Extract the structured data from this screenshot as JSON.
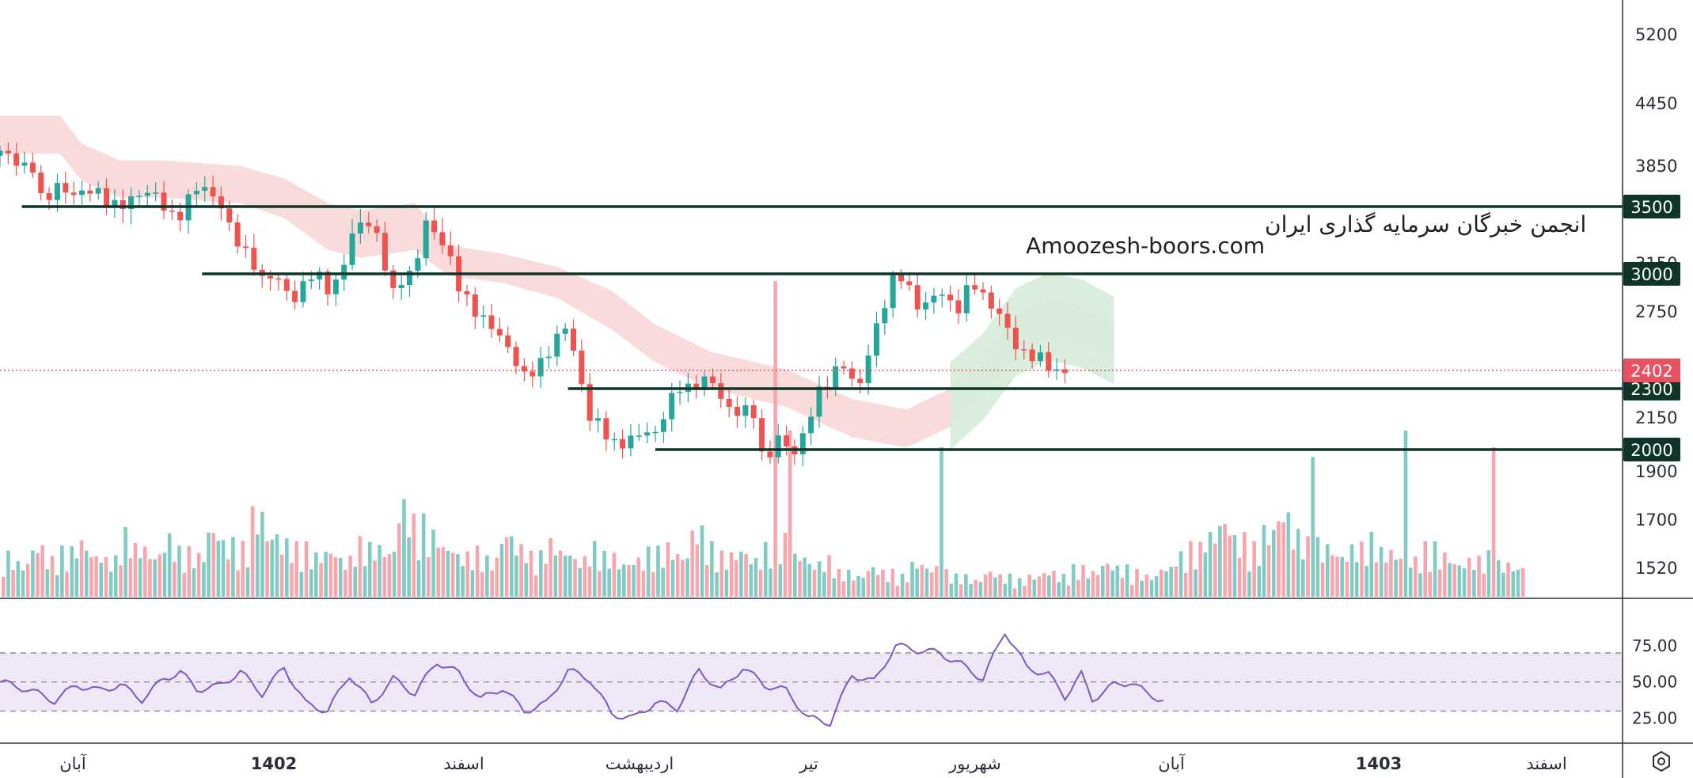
{
  "chart_data": {
    "type": "candlestick",
    "title": "",
    "watermark": [
      "انجمن خبرگان سرمایه گذاری ایران",
      "Amoozesh-boors.com"
    ],
    "ylim": [
      1450,
      5500
    ],
    "y_ticks": [
      5200,
      4450,
      3850,
      3150,
      2750,
      2150,
      1900,
      1700,
      1520
    ],
    "x_ticks": [
      {
        "label": "آبان",
        "bold": false
      },
      {
        "label": "1402",
        "bold": true
      },
      {
        "label": "اسفند",
        "bold": false
      },
      {
        "label": "اردیبهشت",
        "bold": false
      },
      {
        "label": "تیر",
        "bold": false
      },
      {
        "label": "شهریور",
        "bold": false
      },
      {
        "label": "آبان",
        "bold": false
      },
      {
        "label": "1403",
        "bold": true
      },
      {
        "label": "اسفند",
        "bold": false
      }
    ],
    "current_price": {
      "value": 2402,
      "label": "2402",
      "color": "#e8515f"
    },
    "levels": [
      {
        "value": 3500,
        "label": "3500",
        "from_month": 0.2
      },
      {
        "value": 3000,
        "label": "3000",
        "from_month": 1.85
      },
      {
        "value": 2300,
        "label": "2300",
        "from_month": 5.2
      },
      {
        "value": 2000,
        "label": "2000",
        "from_month": 6.0
      }
    ],
    "price_path": [
      [
        0,
        3950
      ],
      [
        0.3,
        3870
      ],
      [
        0.4,
        3450
      ],
      [
        0.5,
        3650
      ],
      [
        0.8,
        3650
      ],
      [
        1.0,
        3500
      ],
      [
        1.2,
        3600
      ],
      [
        1.4,
        3580
      ],
      [
        1.6,
        3450
      ],
      [
        1.8,
        3630
      ],
      [
        2.0,
        3580
      ],
      [
        2.2,
        3250
      ],
      [
        2.4,
        2950
      ],
      [
        2.5,
        3050
      ],
      [
        2.7,
        2800
      ],
      [
        2.9,
        3050
      ],
      [
        3.05,
        2880
      ],
      [
        3.2,
        3250
      ],
      [
        3.35,
        3450
      ],
      [
        3.45,
        3350
      ],
      [
        3.6,
        2850
      ],
      [
        3.75,
        3000
      ],
      [
        3.9,
        3450
      ],
      [
        4.1,
        3200
      ],
      [
        4.2,
        2900
      ],
      [
        4.4,
        2750
      ],
      [
        4.6,
        2550
      ],
      [
        4.8,
        2400
      ],
      [
        5.0,
        2450
      ],
      [
        5.2,
        2700
      ],
      [
        5.3,
        2400
      ],
      [
        5.4,
        2150
      ],
      [
        5.6,
        2020
      ],
      [
        5.8,
        2080
      ],
      [
        6.0,
        2050
      ],
      [
        6.2,
        2350
      ],
      [
        6.35,
        2280
      ],
      [
        6.5,
        2350
      ],
      [
        6.7,
        2200
      ],
      [
        6.9,
        2150
      ],
      [
        7.0,
        1900
      ],
      [
        7.1,
        2100
      ],
      [
        7.3,
        1950
      ],
      [
        7.5,
        2300
      ],
      [
        7.7,
        2450
      ],
      [
        7.85,
        2250
      ],
      [
        8.0,
        2650
      ],
      [
        8.2,
        3000
      ],
      [
        8.4,
        2800
      ],
      [
        8.6,
        2900
      ],
      [
        8.75,
        2700
      ],
      [
        8.9,
        3000
      ],
      [
        9.1,
        2750
      ],
      [
        9.3,
        2550
      ],
      [
        9.5,
        2500
      ],
      [
        9.65,
        2350
      ],
      [
        9.75,
        2402
      ]
    ],
    "cloud_path": [
      [
        0,
        4050
      ],
      [
        0.55,
        4050
      ],
      [
        0.75,
        3800
      ],
      [
        1.1,
        3650
      ],
      [
        1.5,
        3650
      ],
      [
        2.2,
        3600
      ],
      [
        2.6,
        3500
      ],
      [
        3.0,
        3300
      ],
      [
        3.3,
        3250
      ],
      [
        3.8,
        3300
      ],
      [
        4.1,
        3050
      ],
      [
        4.6,
        3000
      ],
      [
        5.1,
        2900
      ],
      [
        5.6,
        2700
      ],
      [
        6.0,
        2500
      ],
      [
        6.5,
        2350
      ],
      [
        7.2,
        2250
      ],
      [
        7.8,
        2100
      ],
      [
        8.3,
        2050
      ],
      [
        8.7,
        2150
      ],
      [
        9.0,
        2300
      ],
      [
        9.3,
        2550
      ],
      [
        9.6,
        2650
      ],
      [
        9.9,
        2600
      ],
      [
        10.2,
        2500
      ]
    ],
    "volume_profile": [
      0.1,
      0.08,
      0.12,
      0.09,
      0.11,
      0.13,
      0.1,
      0.09,
      0.15,
      0.12,
      0.1,
      0.14,
      0.11,
      0.1,
      0.16,
      0.13,
      0.12,
      0.2,
      0.15,
      0.13,
      0.12,
      0.1,
      0.11,
      0.09,
      0.13,
      0.12,
      0.11,
      0.22,
      0.18,
      0.15,
      0.12,
      0.1,
      0.11,
      0.09,
      0.15,
      0.12,
      0.1,
      0.13,
      0.11,
      0.09,
      0.12,
      0.1,
      0.08,
      0.09,
      0.11,
      0.12,
      0.1,
      0.16,
      0.12,
      0.1,
      0.11,
      0.09,
      0.12,
      0.14,
      0.1,
      0.08,
      0.09,
      0.06,
      0.05,
      0.07,
      0.06,
      0.05,
      0.08,
      0.07,
      0.06,
      0.05,
      0.04,
      0.06,
      0.05,
      0.04,
      0.05,
      0.06,
      0.05,
      0.07,
      0.06,
      0.08,
      0.07,
      0.06,
      0.05,
      0.07,
      0.1,
      0.12,
      0.15,
      0.18,
      0.14,
      0.12,
      0.16,
      0.2,
      0.15,
      0.13,
      0.12,
      0.1,
      0.12,
      0.14,
      0.11,
      0.1,
      0.09,
      0.12,
      0.1,
      0.08,
      0.09,
      0.1,
      0.08,
      0.07
    ],
    "rsi": {
      "ticks": [
        75.0,
        50.0,
        25.0
      ],
      "tick_labels": [
        "75.00",
        "50.00",
        "25.00"
      ],
      "band": [
        30,
        70
      ],
      "path": [
        [
          0,
          50
        ],
        [
          0.25,
          45
        ],
        [
          0.5,
          37
        ],
        [
          0.7,
          48
        ],
        [
          0.9,
          44
        ],
        [
          1.1,
          48
        ],
        [
          1.3,
          38
        ],
        [
          1.5,
          52
        ],
        [
          1.65,
          57
        ],
        [
          1.8,
          45
        ],
        [
          2.0,
          47
        ],
        [
          2.2,
          57
        ],
        [
          2.4,
          42
        ],
        [
          2.6,
          60
        ],
        [
          2.8,
          35
        ],
        [
          3.0,
          30
        ],
        [
          3.2,
          55
        ],
        [
          3.4,
          35
        ],
        [
          3.6,
          52
        ],
        [
          3.8,
          42
        ],
        [
          4.0,
          64
        ],
        [
          4.2,
          56
        ],
        [
          4.4,
          38
        ],
        [
          4.6,
          46
        ],
        [
          4.8,
          30
        ],
        [
          5.0,
          35
        ],
        [
          5.2,
          58
        ],
        [
          5.4,
          52
        ],
        [
          5.6,
          28
        ],
        [
          5.8,
          25
        ],
        [
          6.0,
          36
        ],
        [
          6.2,
          32
        ],
        [
          6.4,
          58
        ],
        [
          6.6,
          44
        ],
        [
          6.8,
          60
        ],
        [
          7.0,
          48
        ],
        [
          7.2,
          44
        ],
        [
          7.4,
          25
        ],
        [
          7.6,
          22
        ],
        [
          7.8,
          55
        ],
        [
          8.0,
          50
        ],
        [
          8.2,
          75
        ],
        [
          8.4,
          72
        ],
        [
          8.6,
          70
        ],
        [
          8.8,
          62
        ],
        [
          9.0,
          52
        ],
        [
          9.2,
          85
        ],
        [
          9.4,
          60
        ],
        [
          9.6,
          55
        ],
        [
          9.75,
          40
        ],
        [
          9.9,
          55
        ],
        [
          10.0,
          38
        ],
        [
          10.2,
          48
        ],
        [
          10.35,
          50
        ],
        [
          10.5,
          42
        ],
        [
          10.7,
          36
        ]
      ]
    },
    "colors": {
      "up": "#26a69a",
      "down": "#ef5350",
      "cloud_red": "#f9d5d5",
      "cloud_green": "#d5ecd9",
      "level_line": "#0f3529",
      "rsi_line": "#7e57c2",
      "rsi_band": "#ede7f6",
      "current": "#e8515f"
    }
  }
}
